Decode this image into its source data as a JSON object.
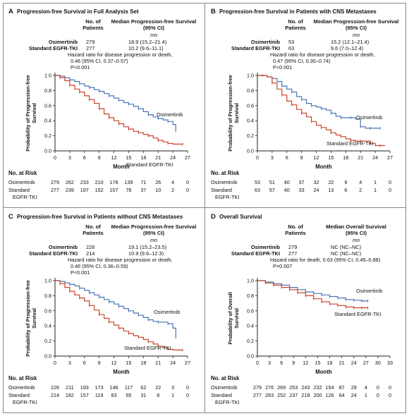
{
  "panels": [
    {
      "letter": "A",
      "title": "Progression-free Survival in Full Analysis Set",
      "head_patients": [
        "No. of",
        "Patients"
      ],
      "head_median": [
        "Median Progression-free Survival",
        "(95% CI)"
      ],
      "unit": "mo",
      "rows": [
        {
          "arm": "Osimertinib",
          "n": "279",
          "median": "18.9 (15.2–21.4)"
        },
        {
          "arm": "Standard EGFR-TKI",
          "n": "277",
          "median": "10.2 (9.6–11.1)"
        }
      ],
      "hazard": [
        "Hazard ratio for disease progression or death,",
        "0.46 (95% CI, 0.37–0.57)"
      ],
      "p": "P<0.001",
      "ylabel": [
        "Probability of Progression-free",
        "Survival"
      ],
      "xlabel": "Month",
      "risk_title": "No. at Risk",
      "risk_label_osi": "Osimertinib",
      "risk_label_std": [
        "Standard",
        "EGFR-TKI"
      ],
      "risk_osi": [
        "279",
        "262",
        "233",
        "210",
        "178",
        "139",
        "71",
        "26",
        "4",
        "0"
      ],
      "risk_std": [
        "277",
        "239",
        "197",
        "152",
        "107",
        "78",
        "37",
        "10",
        "2",
        "0"
      ],
      "label_osi": "Osimertinib",
      "label_std": "Standard EGFR-TKI"
    },
    {
      "letter": "B",
      "title": "Progression-free Survival in Patients with CNS Metastases",
      "head_patients": [
        "No. of",
        "Patients"
      ],
      "head_median": [
        "Median Progression-free Survival",
        "(95% CI)"
      ],
      "unit": "mo",
      "rows": [
        {
          "arm": "Osimertinib",
          "n": "53",
          "median": "15.2 (12.1–21.4)"
        },
        {
          "arm": "Standard EGFR-TKI",
          "n": "63",
          "median": "9.6 (7.0–12.4)"
        }
      ],
      "hazard": [
        "Hazard ratio for disease progression or death,",
        "0.47 (95% CI, 0.30–0.74)"
      ],
      "p": "P<0.001",
      "ylabel": [
        "Probability of Progression-free",
        "Survival"
      ],
      "xlabel": "Month",
      "risk_title": "No. at Risk",
      "risk_label_osi": "Osimertinib",
      "risk_label_std": [
        "Standard",
        "EGFR-TKI"
      ],
      "risk_osi": [
        "53",
        "51",
        "40",
        "37",
        "32",
        "22",
        "9",
        "4",
        "1",
        "0"
      ],
      "risk_std": [
        "63",
        "57",
        "40",
        "33",
        "24",
        "13",
        "6",
        "2",
        "1",
        "0"
      ],
      "label_osi": "Osimertinib",
      "label_std": "Standard EGFR-TKI"
    },
    {
      "letter": "C",
      "title": "Progression-free Survival in Patients without CNS Metastases",
      "head_patients": [
        "No. of",
        "Patients"
      ],
      "head_median": [
        "Median Progression-free Survival",
        "(95% CI)"
      ],
      "unit": "mo",
      "rows": [
        {
          "arm": "Osimertinib",
          "n": "226",
          "median": "19.1 (15.2–23.5)"
        },
        {
          "arm": "Standard EGFR-TKI",
          "n": "214",
          "median": "10.9 (9.6–12.3)"
        }
      ],
      "hazard": [
        "Hazard ratio for disease progression or death,",
        "0.46 (95% CI, 0.36–0.59)"
      ],
      "p": "P<0.001",
      "ylabel": [
        "Probability of Progression-free",
        "Survival"
      ],
      "xlabel": "Month",
      "risk_title": "No. at Risk",
      "risk_label_osi": "Osimertinib",
      "risk_label_std": [
        "Standard",
        "EGFR-TKI"
      ],
      "risk_osi": [
        "226",
        "211",
        "193",
        "173",
        "146",
        "117",
        "62",
        "22",
        "3",
        "0"
      ],
      "risk_std": [
        "214",
        "182",
        "157",
        "119",
        "83",
        "65",
        "31",
        "8",
        "1",
        "0"
      ],
      "label_osi": "Osimertinib",
      "label_std": "Standard EGFR-TKI"
    },
    {
      "letter": "D",
      "title": "Overall Survival",
      "head_patients": [
        "No. of",
        "Patients"
      ],
      "head_median": [
        "Median Overall Survival",
        "(95% CI)"
      ],
      "unit": "mo",
      "rows": [
        {
          "arm": "Osimertinib",
          "n": "279",
          "median": "NC (NC–NC)"
        },
        {
          "arm": "Standard EGFR-TKI",
          "n": "277",
          "median": "NC (NC–NC)"
        }
      ],
      "hazard": [
        "Hazard ratio for death, 0.63 (95% CI, 0.45–0.88)"
      ],
      "p": "P=0.007",
      "ylabel": [
        "Probability of Overall",
        "Survival"
      ],
      "xlabel": "Month",
      "risk_title": "No. at Risk",
      "risk_label_osi": "Osimertinib",
      "risk_label_std": [
        "Standard",
        "EGFR-TKI"
      ],
      "risk_osi": [
        "279",
        "276",
        "269",
        "253",
        "243",
        "232",
        "154",
        "87",
        "29",
        "4",
        "0",
        "0"
      ],
      "risk_std": [
        "277",
        "263",
        "252",
        "237",
        "218",
        "200",
        "126",
        "64",
        "24",
        "1",
        "0",
        "0"
      ],
      "label_osi": "Osimertinib",
      "label_std": "Standard EGFR-TKI"
    }
  ],
  "colors": {
    "osimertinib": "#4a74b5",
    "standard": "#c9452c",
    "axis": "#222222"
  },
  "chart_data": [
    {
      "type": "line",
      "xlabel": "Month",
      "xlim": [
        0,
        27
      ],
      "xticks": [
        0,
        3,
        6,
        9,
        12,
        15,
        18,
        21,
        24,
        27
      ],
      "ylim": [
        0,
        1
      ],
      "yticks": [
        0.0,
        0.2,
        0.4,
        0.6,
        0.8,
        1.0
      ],
      "series": [
        {
          "name": "Osimertinib",
          "x": [
            0,
            1,
            2,
            3,
            4,
            5,
            6,
            7,
            8,
            9,
            10,
            11,
            12,
            13,
            14,
            15,
            16,
            17,
            18,
            19,
            20,
            21,
            22,
            23,
            24,
            24.6
          ],
          "y": [
            1.0,
            0.99,
            0.97,
            0.94,
            0.92,
            0.89,
            0.86,
            0.84,
            0.81,
            0.79,
            0.76,
            0.73,
            0.7,
            0.67,
            0.64,
            0.62,
            0.59,
            0.56,
            0.52,
            0.48,
            0.45,
            0.43,
            0.41,
            0.39,
            0.35,
            0.27
          ]
        },
        {
          "name": "Standard EGFR-TKI",
          "x": [
            0,
            1,
            2,
            3,
            4,
            5,
            6,
            7,
            8,
            9,
            10,
            11,
            12,
            13,
            14,
            15,
            16,
            17,
            18,
            19,
            20,
            21,
            22,
            23,
            24,
            26
          ],
          "y": [
            1.0,
            0.97,
            0.93,
            0.87,
            0.82,
            0.78,
            0.73,
            0.68,
            0.63,
            0.56,
            0.49,
            0.44,
            0.4,
            0.36,
            0.32,
            0.29,
            0.26,
            0.24,
            0.22,
            0.2,
            0.17,
            0.14,
            0.12,
            0.1,
            0.09,
            0.09
          ]
        }
      ]
    },
    {
      "type": "line",
      "xlabel": "Month",
      "xlim": [
        0,
        27
      ],
      "xticks": [
        0,
        3,
        6,
        9,
        12,
        15,
        18,
        21,
        24,
        27
      ],
      "ylim": [
        0,
        1
      ],
      "yticks": [
        0.0,
        0.2,
        0.4,
        0.6,
        0.8,
        1.0
      ],
      "series": [
        {
          "name": "Osimertinib",
          "x": [
            0,
            1,
            2,
            3,
            4,
            5,
            6,
            7,
            8,
            9,
            10,
            11,
            12,
            13,
            14,
            15,
            16,
            17,
            18,
            19,
            20,
            21,
            22,
            23,
            24,
            25
          ],
          "y": [
            1.0,
            1.0,
            0.98,
            0.96,
            0.92,
            0.86,
            0.82,
            0.78,
            0.72,
            0.68,
            0.63,
            0.6,
            0.58,
            0.56,
            0.54,
            0.5,
            0.46,
            0.44,
            0.44,
            0.44,
            0.42,
            0.32,
            0.3,
            0.3,
            0.3,
            0.3
          ]
        },
        {
          "name": "Standard EGFR-TKI",
          "x": [
            0,
            1,
            2,
            3,
            4,
            5,
            6,
            7,
            8,
            9,
            10,
            11,
            12,
            13,
            14,
            15,
            16,
            17,
            18,
            19,
            20,
            21,
            22,
            23,
            24,
            25,
            26
          ],
          "y": [
            1.0,
            1.0,
            0.98,
            0.9,
            0.82,
            0.74,
            0.66,
            0.61,
            0.55,
            0.5,
            0.45,
            0.39,
            0.34,
            0.31,
            0.28,
            0.24,
            0.21,
            0.19,
            0.16,
            0.14,
            0.13,
            0.13,
            0.13,
            0.1,
            0.07,
            0.07,
            0.07
          ]
        }
      ]
    },
    {
      "type": "line",
      "xlabel": "Month",
      "xlim": [
        0,
        27
      ],
      "xticks": [
        0,
        3,
        6,
        9,
        12,
        15,
        18,
        21,
        24,
        27
      ],
      "ylim": [
        0,
        1
      ],
      "yticks": [
        0.0,
        0.2,
        0.4,
        0.6,
        0.8,
        1.0
      ],
      "series": [
        {
          "name": "Osimertinib",
          "x": [
            0,
            1,
            2,
            3,
            4,
            5,
            6,
            7,
            8,
            9,
            10,
            11,
            12,
            13,
            14,
            15,
            16,
            17,
            18,
            19,
            20,
            21,
            22,
            23,
            24,
            24.6
          ],
          "y": [
            1.0,
            0.99,
            0.97,
            0.95,
            0.93,
            0.9,
            0.87,
            0.84,
            0.81,
            0.78,
            0.75,
            0.72,
            0.69,
            0.66,
            0.63,
            0.6,
            0.57,
            0.54,
            0.51,
            0.48,
            0.46,
            0.45,
            0.45,
            0.43,
            0.37,
            0.25
          ]
        },
        {
          "name": "Standard EGFR-TKI",
          "x": [
            0,
            1,
            2,
            3,
            4,
            5,
            6,
            7,
            8,
            9,
            10,
            11,
            12,
            13,
            14,
            15,
            16,
            17,
            18,
            19,
            20,
            21,
            22,
            23,
            24,
            26
          ],
          "y": [
            1.0,
            0.96,
            0.91,
            0.86,
            0.81,
            0.77,
            0.73,
            0.67,
            0.61,
            0.55,
            0.5,
            0.45,
            0.41,
            0.37,
            0.33,
            0.3,
            0.27,
            0.25,
            0.22,
            0.19,
            0.16,
            0.13,
            0.11,
            0.09,
            0.08,
            0.08
          ]
        }
      ]
    },
    {
      "type": "line",
      "xlabel": "Month",
      "xlim": [
        0,
        33
      ],
      "xticks": [
        0,
        3,
        6,
        9,
        12,
        15,
        18,
        21,
        24,
        27,
        30,
        33
      ],
      "ylim": [
        0,
        1
      ],
      "yticks": [
        0.0,
        0.2,
        0.4,
        0.6,
        0.8,
        1.0
      ],
      "series": [
        {
          "name": "Osimertinib",
          "x": [
            0,
            2,
            4,
            6,
            8,
            10,
            12,
            14,
            16,
            18,
            20,
            22,
            24,
            26,
            27.5
          ],
          "y": [
            1.0,
            0.98,
            0.96,
            0.94,
            0.91,
            0.88,
            0.85,
            0.83,
            0.81,
            0.79,
            0.77,
            0.75,
            0.74,
            0.73,
            0.73
          ]
        },
        {
          "name": "Standard EGFR-TKI",
          "x": [
            0,
            2,
            4,
            6,
            8,
            10,
            12,
            14,
            16,
            18,
            20,
            22,
            24,
            26,
            27.5
          ],
          "y": [
            1.0,
            0.97,
            0.94,
            0.91,
            0.88,
            0.84,
            0.8,
            0.76,
            0.72,
            0.69,
            0.67,
            0.65,
            0.64,
            0.64,
            0.64
          ]
        }
      ]
    }
  ]
}
